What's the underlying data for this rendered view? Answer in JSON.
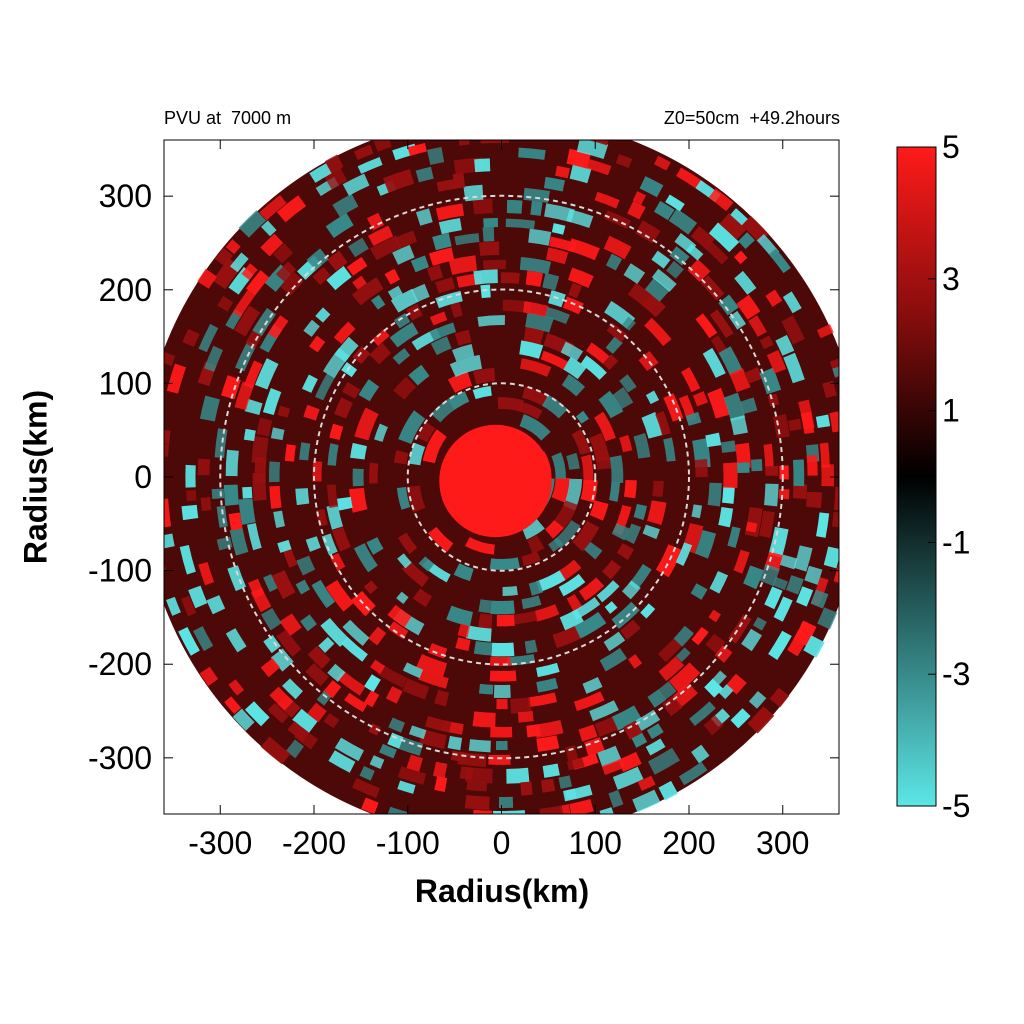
{
  "chart_data": {
    "type": "heatmap",
    "title_left": "PVU at  7000 m",
    "title_right": "Z0=50cm  +49.2hours",
    "xlabel": "Radius(km)",
    "ylabel": "Radius(km)",
    "xlim": [
      -360,
      360
    ],
    "ylim": [
      -360,
      360
    ],
    "x_ticks": [
      -300,
      -200,
      -100,
      0,
      100,
      200,
      300
    ],
    "y_ticks": [
      300,
      200,
      100,
      0,
      -100,
      -200,
      -300
    ],
    "domain_radius_km": 385,
    "reference_circles_km": [
      100,
      200,
      300
    ],
    "colorbar": {
      "range": [
        -5,
        5
      ],
      "ticks": [
        5,
        3,
        1,
        -1,
        -3,
        -5
      ],
      "colors": {
        "low": "#5ce6e6",
        "mid": "#000000",
        "high": "#ff1a1a"
      }
    },
    "features": {
      "core_value": 5,
      "core_radius_km": 60,
      "background_value": 1.5,
      "anomaly_values": [
        -5,
        -3,
        3,
        5
      ]
    }
  },
  "colors": {
    "axis": "#000000",
    "circle_line": "#d8d8d8",
    "background": "#ffffff"
  }
}
